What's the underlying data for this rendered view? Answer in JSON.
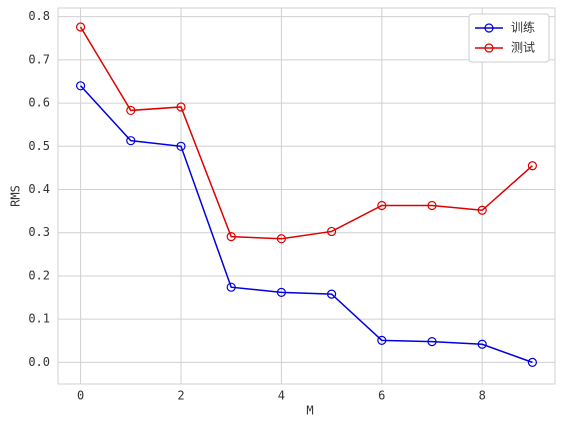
{
  "chart_data": {
    "type": "line",
    "x_label": "M",
    "y_label": "RMS",
    "x": [
      0,
      1,
      2,
      3,
      4,
      5,
      6,
      7,
      8,
      9
    ],
    "series": [
      {
        "name": "训练",
        "color": "#0000e0",
        "values": [
          0.64,
          0.513,
          0.5,
          0.174,
          0.162,
          0.158,
          0.051,
          0.048,
          0.042,
          0.0
        ]
      },
      {
        "name": "测试",
        "color": "#e00000",
        "values": [
          0.776,
          0.583,
          0.591,
          0.291,
          0.286,
          0.303,
          0.363,
          0.363,
          0.352,
          0.455
        ]
      }
    ],
    "xlim": [
      -0.45,
      9.45
    ],
    "ylim": [
      -0.05,
      0.82
    ],
    "xticks": [
      0,
      2,
      4,
      6,
      8
    ],
    "yticks": [
      {
        "value": 0,
        "label": "0.0"
      },
      0.1,
      0.2,
      0.3,
      0.4,
      0.5,
      0.6,
      0.7,
      0.8
    ],
    "grid": true,
    "legend": "upper right"
  }
}
